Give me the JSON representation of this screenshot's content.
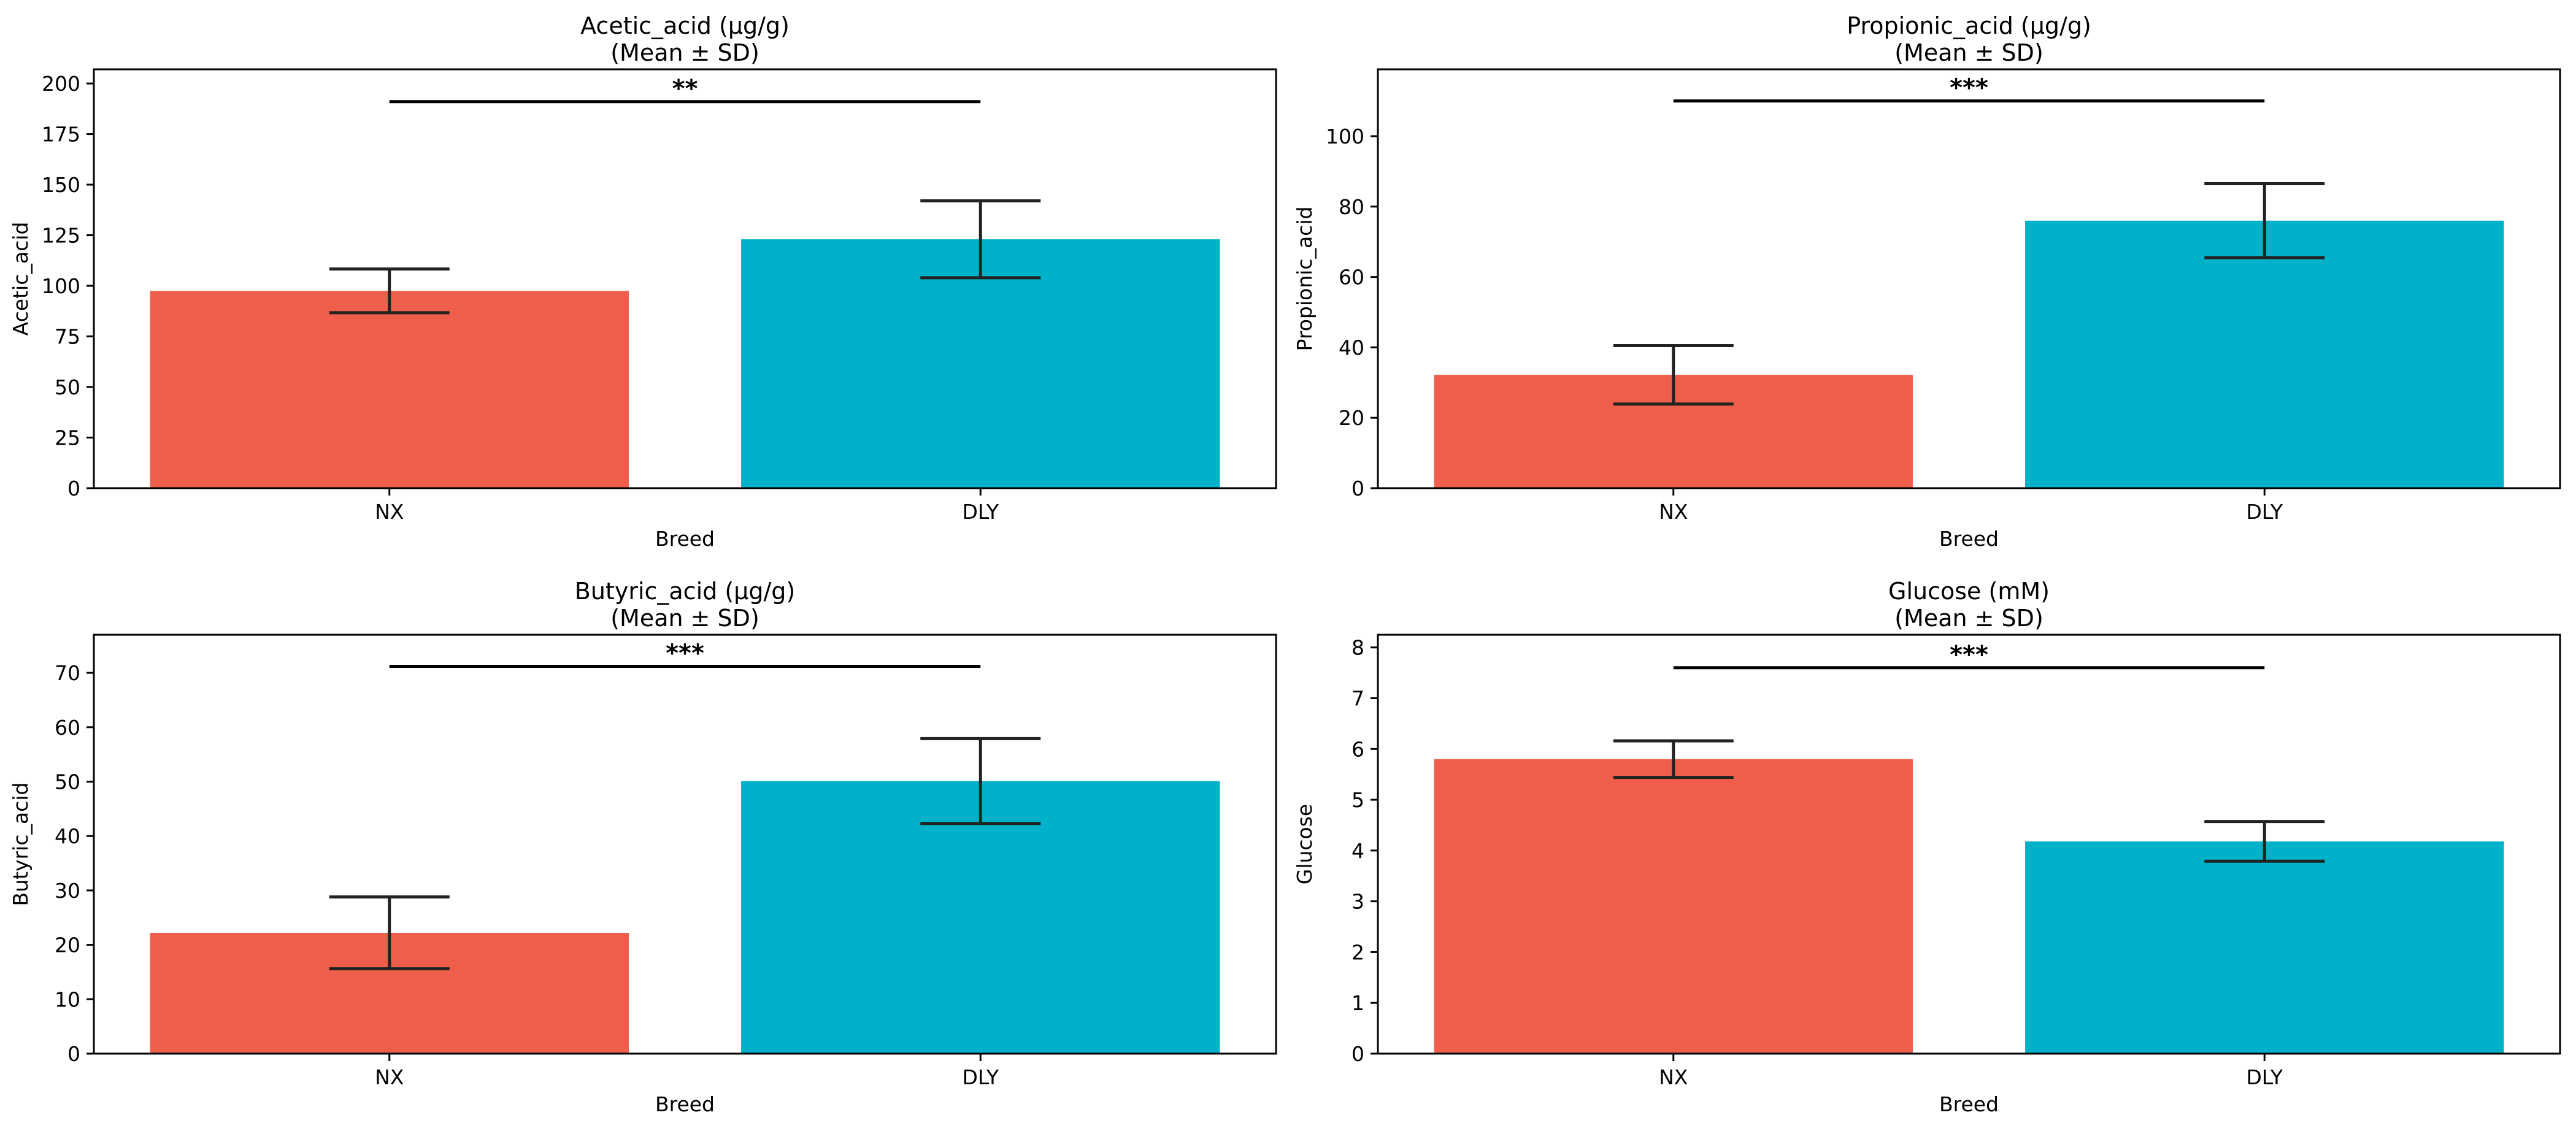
{
  "colors": {
    "NX": "#ee5e4a",
    "DLY": "#00b2c9",
    "axis": "#000000",
    "errorbar": "#222222"
  },
  "chart_data": [
    {
      "type": "bar",
      "title": "Acetic_acid (µg/g)",
      "subtitle": "(Mean ± SD)",
      "xlabel": "Breed",
      "ylabel": "Acetic_acid",
      "categories": [
        "NX",
        "DLY"
      ],
      "values": [
        97.5,
        123
      ],
      "errors": [
        10.8,
        19
      ],
      "ylim": [
        0,
        207
      ],
      "yticks": [
        0,
        25,
        50,
        75,
        100,
        125,
        150,
        175,
        200
      ],
      "significance": {
        "label": "**",
        "y": 191
      }
    },
    {
      "type": "bar",
      "title": "Propionic_acid (µg/g)",
      "subtitle": "(Mean ± SD)",
      "xlabel": "Breed",
      "ylabel": "Propionic_acid",
      "categories": [
        "NX",
        "DLY"
      ],
      "values": [
        32.2,
        76
      ],
      "errors": [
        8.3,
        10.5
      ],
      "ylim": [
        0,
        119
      ],
      "yticks": [
        0,
        20,
        40,
        60,
        80,
        100
      ],
      "significance": {
        "label": "***",
        "y": 110
      }
    },
    {
      "type": "bar",
      "title": "Butyric_acid (µg/g)",
      "subtitle": "(Mean ± SD)",
      "xlabel": "Breed",
      "ylabel": "Butyric_acid",
      "categories": [
        "NX",
        "DLY"
      ],
      "values": [
        22.2,
        50.1
      ],
      "errors": [
        6.6,
        7.8
      ],
      "ylim": [
        0,
        77
      ],
      "yticks": [
        0,
        10,
        20,
        30,
        40,
        50,
        60,
        70
      ],
      "significance": {
        "label": "***",
        "y": 71.2
      }
    },
    {
      "type": "bar",
      "title": "Glucose (mM)",
      "subtitle": "(Mean ± SD)",
      "xlabel": "Breed",
      "ylabel": "Glucose",
      "categories": [
        "NX",
        "DLY"
      ],
      "values": [
        5.8,
        4.18
      ],
      "errors": [
        0.36,
        0.39
      ],
      "ylim": [
        0,
        8.25
      ],
      "yticks": [
        0,
        1,
        2,
        3,
        4,
        5,
        6,
        7,
        8
      ],
      "significance": {
        "label": "***",
        "y": 7.6
      }
    }
  ]
}
